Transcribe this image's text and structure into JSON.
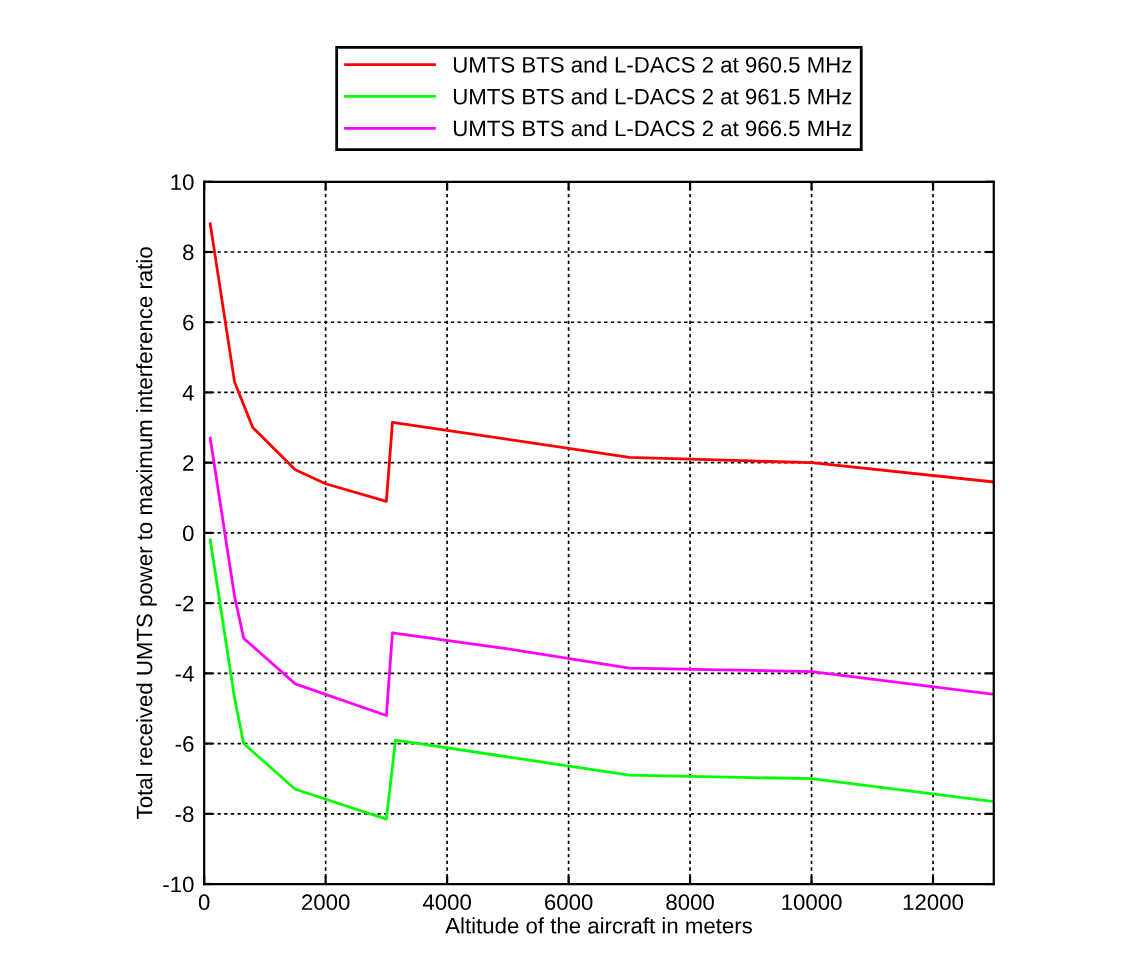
{
  "chart_data": {
    "type": "line",
    "xlabel": "Altitude of the aircraft in meters",
    "ylabel": "Total received UMTS power to maximum interference ratio",
    "xlim": [
      0,
      13000
    ],
    "xticks": [
      0,
      2000,
      4000,
      6000,
      8000,
      10000,
      12000
    ],
    "ylim": [
      -10,
      10
    ],
    "yticks": [
      -10,
      -8,
      -6,
      -4,
      -2,
      0,
      2,
      4,
      6,
      8,
      10
    ],
    "grid": true,
    "legend": "top",
    "line_style": "solid",
    "marker": "none",
    "series": [
      {
        "name": "UMTS BTS and L-DACS 2 at 960.5 MHz",
        "color": "#ff0000",
        "x": [
          100,
          500,
          800,
          1500,
          2000,
          3000,
          3100,
          7000,
          9000,
          10000,
          13000
        ],
        "values": [
          8.8,
          4.3,
          3.0,
          1.8,
          1.4,
          0.9,
          3.15,
          2.15,
          2.05,
          2.0,
          1.45
        ]
      },
      {
        "name": "UMTS BTS and L-DACS 2 at 961.5 MHz",
        "color": "#00ff00",
        "x": [
          100,
          500,
          650,
          1500,
          3000,
          3150,
          7000,
          10000,
          13000
        ],
        "values": [
          -0.2,
          -4.7,
          -6.0,
          -7.3,
          -8.15,
          -5.9,
          -6.9,
          -7.0,
          -7.65
        ]
      },
      {
        "name": "UMTS BTS and L-DACS 2 at 966.5 MHz",
        "color": "#ff00ff",
        "x": [
          100,
          500,
          650,
          1500,
          3000,
          3100,
          5000,
          7000,
          10000,
          13000
        ],
        "values": [
          2.7,
          -1.8,
          -3.0,
          -4.3,
          -5.2,
          -2.85,
          -3.3,
          -3.85,
          -3.95,
          -4.6
        ]
      }
    ]
  }
}
